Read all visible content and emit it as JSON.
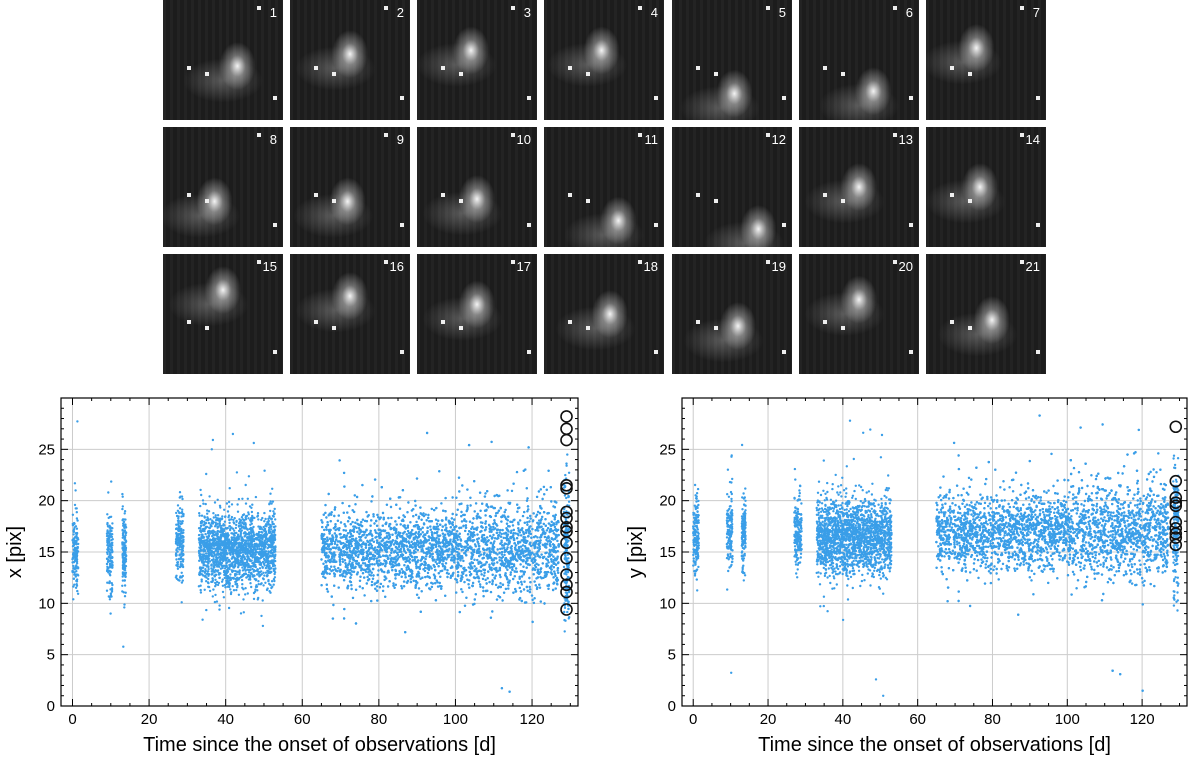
{
  "thumbnails": [
    "1",
    "2",
    "3",
    "4",
    "5",
    "6",
    "7",
    "8",
    "9",
    "10",
    "11",
    "12",
    "13",
    "14",
    "15",
    "16",
    "17",
    "18",
    "19",
    "20",
    "21"
  ],
  "colors": {
    "points": "#3a9ee8",
    "circles": "#111111",
    "grid": "#cccccc",
    "thumb_bg": "#1c1c1c"
  },
  "chart_data": [
    {
      "type": "scatter",
      "xlabel": "Time since the onset of observations [d]",
      "ylabel": "x [pix]",
      "xlim": [
        -3,
        132
      ],
      "ylim": [
        0,
        30
      ],
      "xticks": [
        0,
        20,
        40,
        60,
        80,
        100,
        120
      ],
      "yticks": [
        0,
        5,
        10,
        15,
        20,
        25
      ],
      "grid": true,
      "observing_segments": [
        {
          "x": [
            0,
            1.5
          ],
          "median": 15.0
        },
        {
          "x": [
            9,
            10.5
          ],
          "median": 15.0
        },
        {
          "x": [
            13,
            14
          ],
          "median": 15.0
        },
        {
          "x": [
            27,
            29
          ],
          "median": 15.8
        },
        {
          "x": [
            33,
            53
          ],
          "median": 15.2
        },
        {
          "x": [
            65,
            127
          ],
          "median": 15.3
        }
      ],
      "highlighted_points": {
        "x": 129,
        "values": [
          28.2,
          27.0,
          25.9,
          21.5,
          21.2,
          18.9,
          18.3,
          17.4,
          17.0,
          15.9,
          14.4,
          12.8,
          11.8,
          11.1,
          9.4
        ]
      }
    },
    {
      "type": "scatter",
      "xlabel": "Time since the onset of observations [d]",
      "ylabel": "y [pix]",
      "xlim": [
        -3,
        132
      ],
      "ylim": [
        0,
        30
      ],
      "xticks": [
        0,
        20,
        40,
        60,
        80,
        100,
        120
      ],
      "yticks": [
        0,
        5,
        10,
        15,
        20,
        25
      ],
      "grid": true,
      "observing_segments": [
        {
          "x": [
            0,
            1.5
          ],
          "median": 16.5
        },
        {
          "x": [
            9,
            10.5
          ],
          "median": 16.8
        },
        {
          "x": [
            13,
            14
          ],
          "median": 16.8
        },
        {
          "x": [
            27,
            29
          ],
          "median": 17.0
        },
        {
          "x": [
            33,
            53
          ],
          "median": 16.5
        },
        {
          "x": [
            65,
            127
          ],
          "median": 17.0
        }
      ],
      "highlighted_points": {
        "x": 129,
        "values": [
          27.2,
          21.9,
          20.3,
          19.8,
          19.5,
          17.9,
          17.3,
          16.8,
          16.4,
          15.7
        ]
      }
    }
  ]
}
